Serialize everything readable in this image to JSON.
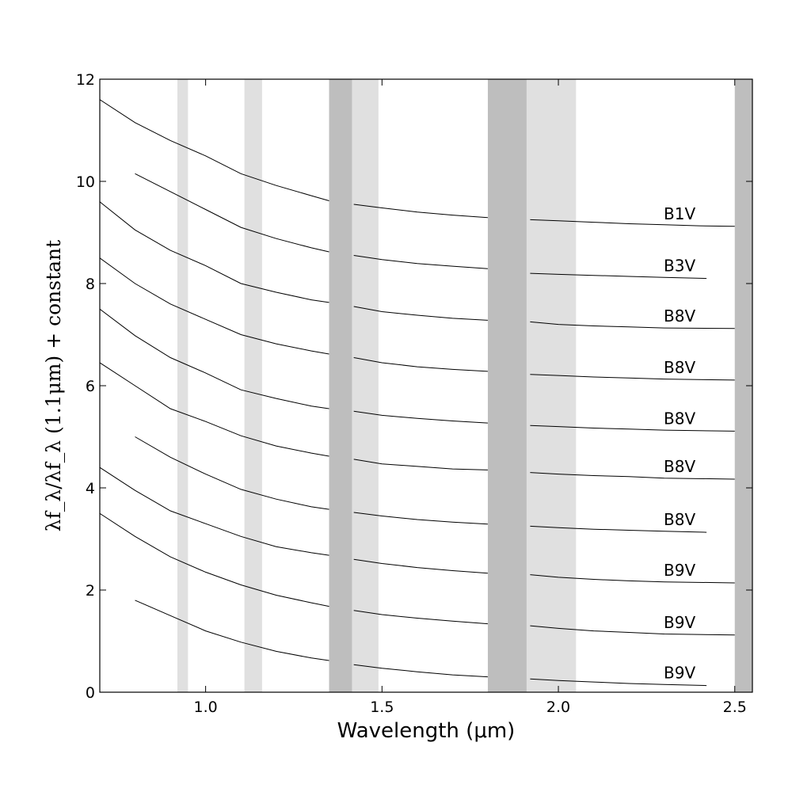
{
  "chart_data": {
    "type": "line",
    "xlabel": "Wavelength (μm)",
    "ylabel": "λf_λ/λf_λ (1.1μm) + constant",
    "xlim": [
      0.7,
      2.55
    ],
    "ylim": [
      0,
      12
    ],
    "x_ticks": [
      1.0,
      1.5,
      2.0,
      2.5
    ],
    "x_tick_labels": [
      "1.0",
      "1.5",
      "2.0",
      "2.5"
    ],
    "y_ticks": [
      0,
      2,
      4,
      6,
      8,
      10,
      12
    ],
    "y_tick_labels": [
      "0",
      "2",
      "4",
      "6",
      "8",
      "10",
      "12"
    ],
    "grid": false,
    "shaded_regions": [
      {
        "x": [
          0.92,
          0.95
        ],
        "color": "#e0e0e0"
      },
      {
        "x": [
          1.11,
          1.16
        ],
        "color": "#e0e0e0"
      },
      {
        "x": [
          1.35,
          1.415
        ],
        "color": "#bebebe"
      },
      {
        "x": [
          1.415,
          1.49
        ],
        "color": "#e0e0e0"
      },
      {
        "x": [
          1.8,
          1.91
        ],
        "color": "#bebebe"
      },
      {
        "x": [
          1.91,
          2.05
        ],
        "color": "#e0e0e0"
      },
      {
        "x": [
          2.5,
          2.55
        ],
        "color": "#bebebe"
      }
    ],
    "series": [
      {
        "name": "B1V",
        "x": [
          0.7,
          0.8,
          0.9,
          1.0,
          1.1,
          1.2,
          1.3,
          1.35,
          1.42,
          1.5,
          1.6,
          1.7,
          1.8,
          1.92,
          2.0,
          2.1,
          2.2,
          2.3,
          2.4,
          2.5
        ],
        "y": [
          11.6,
          11.15,
          10.8,
          10.5,
          10.15,
          9.92,
          9.72,
          9.62,
          9.55,
          9.48,
          9.4,
          9.34,
          9.29,
          9.25,
          9.23,
          9.2,
          9.17,
          9.15,
          9.13,
          9.12
        ]
      },
      {
        "name": "B3V",
        "x": [
          0.8,
          0.9,
          1.0,
          1.1,
          1.2,
          1.3,
          1.35,
          1.42,
          1.5,
          1.6,
          1.7,
          1.8,
          1.92,
          2.0,
          2.1,
          2.2,
          2.3,
          2.42
        ],
        "y": [
          10.15,
          9.8,
          9.45,
          9.1,
          8.88,
          8.7,
          8.62,
          8.55,
          8.47,
          8.39,
          8.34,
          8.29,
          8.2,
          8.18,
          8.16,
          8.14,
          8.12,
          8.1
        ]
      },
      {
        "name": "B8V",
        "x": [
          0.7,
          0.8,
          0.9,
          1.0,
          1.1,
          1.2,
          1.3,
          1.35,
          1.42,
          1.5,
          1.6,
          1.7,
          1.8,
          1.92,
          2.0,
          2.1,
          2.2,
          2.3,
          2.5
        ],
        "y": [
          9.6,
          9.05,
          8.65,
          8.35,
          8.0,
          7.83,
          7.68,
          7.63,
          7.55,
          7.45,
          7.38,
          7.32,
          7.28,
          7.25,
          7.2,
          7.17,
          7.15,
          7.13,
          7.12
        ]
      },
      {
        "name": "B8V",
        "x": [
          0.7,
          0.8,
          0.9,
          1.0,
          1.1,
          1.2,
          1.3,
          1.35,
          1.42,
          1.5,
          1.6,
          1.7,
          1.8,
          1.92,
          2.0,
          2.1,
          2.2,
          2.3,
          2.5
        ],
        "y": [
          8.5,
          8.0,
          7.6,
          7.3,
          7.0,
          6.82,
          6.68,
          6.62,
          6.55,
          6.45,
          6.37,
          6.32,
          6.28,
          6.22,
          6.2,
          6.17,
          6.15,
          6.13,
          6.11
        ]
      },
      {
        "name": "B8V",
        "x": [
          0.7,
          0.8,
          0.9,
          1.0,
          1.1,
          1.2,
          1.3,
          1.35,
          1.42,
          1.5,
          1.6,
          1.7,
          1.8,
          1.92,
          2.0,
          2.1,
          2.2,
          2.3,
          2.5
        ],
        "y": [
          7.5,
          6.98,
          6.55,
          6.25,
          5.92,
          5.75,
          5.6,
          5.55,
          5.5,
          5.42,
          5.36,
          5.31,
          5.27,
          5.22,
          5.2,
          5.17,
          5.15,
          5.13,
          5.11
        ]
      },
      {
        "name": "B8V",
        "x": [
          0.7,
          0.8,
          0.9,
          1.0,
          1.1,
          1.2,
          1.3,
          1.35,
          1.42,
          1.5,
          1.6,
          1.7,
          1.8,
          1.92,
          2.0,
          2.1,
          2.2,
          2.3,
          2.5
        ],
        "y": [
          6.45,
          6.0,
          5.55,
          5.3,
          5.02,
          4.82,
          4.68,
          4.62,
          4.56,
          4.47,
          4.42,
          4.37,
          4.35,
          4.3,
          4.27,
          4.24,
          4.22,
          4.19,
          4.17
        ]
      },
      {
        "name": "B8V",
        "x": [
          0.8,
          0.9,
          1.0,
          1.1,
          1.2,
          1.3,
          1.35,
          1.42,
          1.5,
          1.6,
          1.7,
          1.8,
          1.92,
          2.0,
          2.1,
          2.2,
          2.3,
          2.42
        ],
        "y": [
          5.0,
          4.6,
          4.27,
          3.97,
          3.78,
          3.63,
          3.58,
          3.52,
          3.45,
          3.38,
          3.33,
          3.29,
          3.25,
          3.22,
          3.19,
          3.17,
          3.15,
          3.13
        ]
      },
      {
        "name": "B9V",
        "x": [
          0.7,
          0.8,
          0.9,
          1.0,
          1.1,
          1.2,
          1.3,
          1.35,
          1.42,
          1.5,
          1.6,
          1.7,
          1.8,
          1.92,
          2.0,
          2.1,
          2.2,
          2.3,
          2.5
        ],
        "y": [
          4.4,
          3.95,
          3.55,
          3.3,
          3.05,
          2.85,
          2.73,
          2.68,
          2.6,
          2.52,
          2.44,
          2.38,
          2.33,
          2.3,
          2.25,
          2.21,
          2.18,
          2.16,
          2.14
        ]
      },
      {
        "name": "B9V",
        "x": [
          0.7,
          0.8,
          0.9,
          1.0,
          1.1,
          1.2,
          1.3,
          1.35,
          1.42,
          1.5,
          1.6,
          1.7,
          1.8,
          1.92,
          2.0,
          2.1,
          2.2,
          2.3,
          2.5
        ],
        "y": [
          3.5,
          3.05,
          2.65,
          2.35,
          2.1,
          1.9,
          1.75,
          1.68,
          1.6,
          1.52,
          1.45,
          1.39,
          1.34,
          1.3,
          1.25,
          1.2,
          1.17,
          1.14,
          1.12
        ]
      },
      {
        "name": "B9V",
        "x": [
          0.8,
          0.9,
          1.0,
          1.1,
          1.2,
          1.3,
          1.35,
          1.42,
          1.5,
          1.6,
          1.7,
          1.8,
          1.92,
          2.0,
          2.1,
          2.2,
          2.3,
          2.42
        ],
        "y": [
          1.8,
          1.5,
          1.2,
          0.98,
          0.8,
          0.67,
          0.62,
          0.54,
          0.47,
          0.4,
          0.34,
          0.3,
          0.26,
          0.23,
          0.2,
          0.17,
          0.15,
          0.13
        ]
      }
    ]
  }
}
